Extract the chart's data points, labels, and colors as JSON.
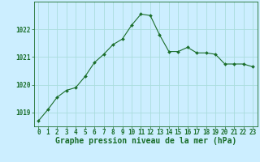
{
  "x": [
    0,
    1,
    2,
    3,
    4,
    5,
    6,
    7,
    8,
    9,
    10,
    11,
    12,
    13,
    14,
    15,
    16,
    17,
    18,
    19,
    20,
    21,
    22,
    23
  ],
  "y": [
    1018.7,
    1019.1,
    1019.55,
    1019.8,
    1019.9,
    1020.3,
    1020.8,
    1021.1,
    1021.45,
    1021.65,
    1022.15,
    1022.55,
    1022.5,
    1021.8,
    1021.2,
    1021.2,
    1021.35,
    1021.15,
    1021.15,
    1021.1,
    1020.75,
    1020.75,
    1020.75,
    1020.65
  ],
  "line_color": "#1a6e2a",
  "marker_color": "#1a6e2a",
  "bg_color": "#cceeff",
  "grid_color": "#aadddd",
  "text_color": "#1a6e2a",
  "xlabel": "Graphe pression niveau de la mer (hPa)",
  "ylim": [
    1018.5,
    1023.0
  ],
  "yticks": [
    1019,
    1020,
    1021,
    1022
  ],
  "xlim": [
    -0.5,
    23.5
  ],
  "xticks": [
    0,
    1,
    2,
    3,
    4,
    5,
    6,
    7,
    8,
    9,
    10,
    11,
    12,
    13,
    14,
    15,
    16,
    17,
    18,
    19,
    20,
    21,
    22,
    23
  ],
  "tick_fontsize": 5.5,
  "label_fontsize": 7.0
}
